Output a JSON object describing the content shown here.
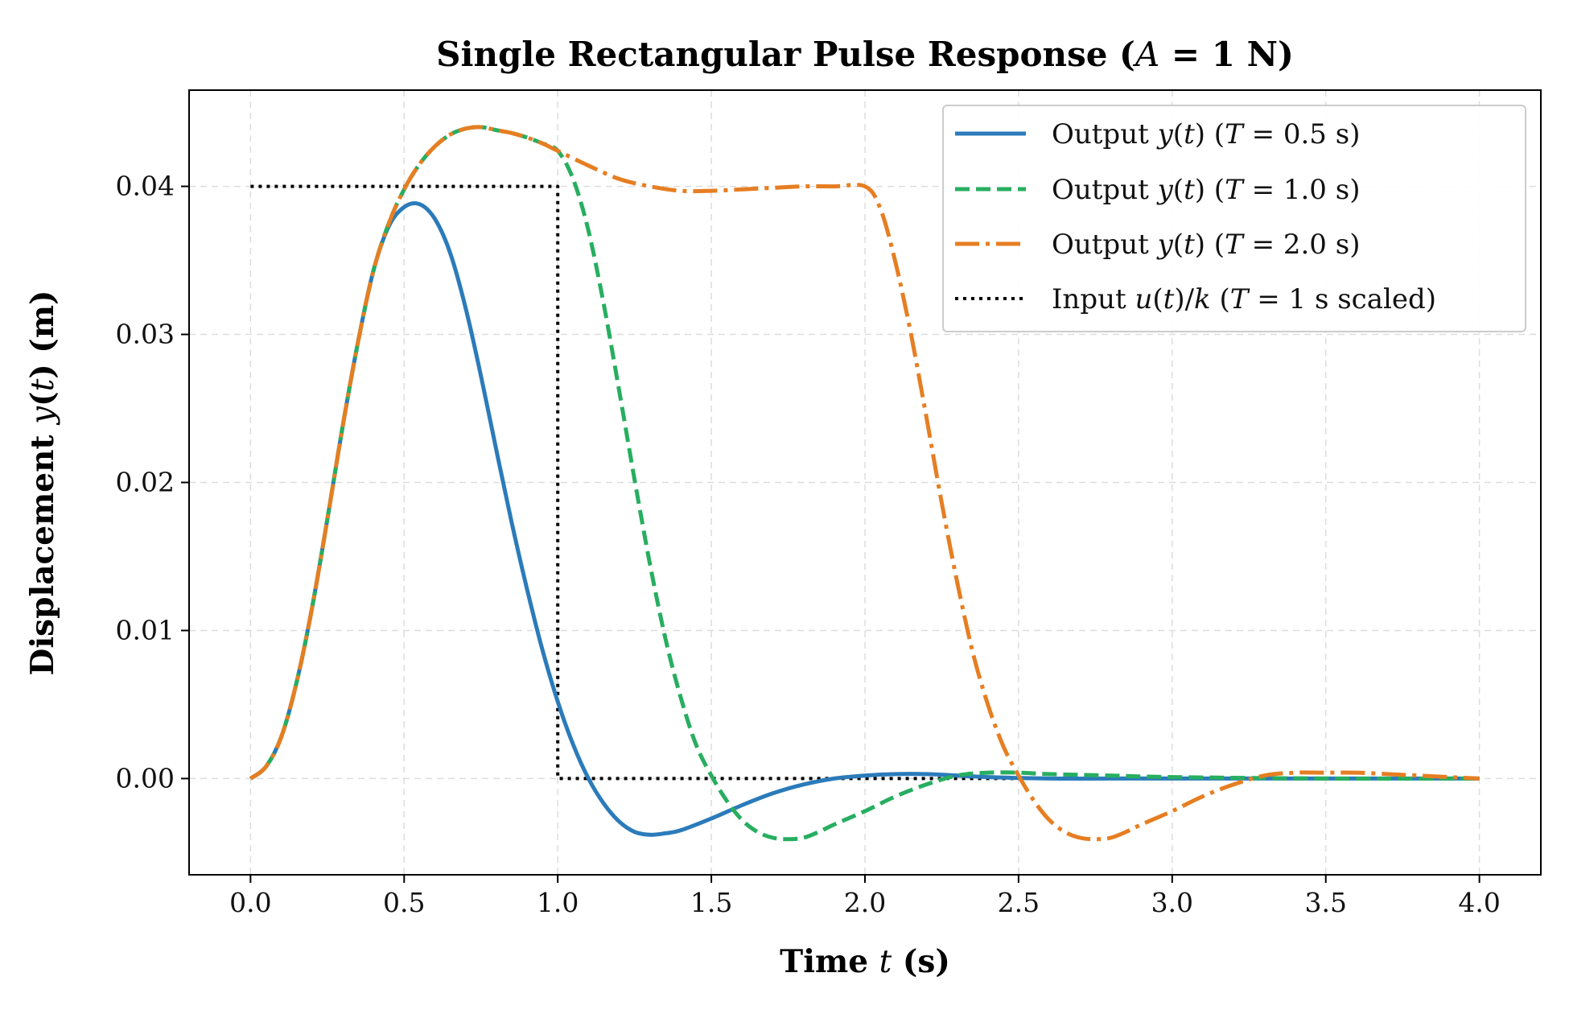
{
  "chart_data": {
    "type": "line",
    "title": "Single Rectangular Pulse Response (A = 1 N)",
    "xlabel": "Time t (s)",
    "ylabel": "Displacement y(t) (m)",
    "xlim": [
      -0.2,
      4.2
    ],
    "ylim": [
      -0.0065,
      0.0465
    ],
    "xticks": [
      "0.0",
      "0.5",
      "1.0",
      "1.5",
      "2.0",
      "2.5",
      "3.0",
      "3.5",
      "4.0"
    ],
    "yticks": [
      "0.00",
      "0.01",
      "0.02",
      "0.03",
      "0.04"
    ],
    "grid": true,
    "legend_position": "top-right",
    "series": [
      {
        "name": "Output y(t) (T = 0.5 s)",
        "color": "#2b7bba",
        "style": "solid",
        "x": [
          0.0,
          0.05,
          0.1,
          0.15,
          0.2,
          0.25,
          0.3,
          0.35,
          0.4,
          0.45,
          0.5,
          0.55,
          0.6,
          0.65,
          0.7,
          0.75,
          0.8,
          0.85,
          0.9,
          0.95,
          1.0,
          1.05,
          1.1,
          1.15,
          1.2,
          1.25,
          1.3,
          1.35,
          1.4,
          1.5,
          1.6,
          1.7,
          1.8,
          1.9,
          2.0,
          2.1,
          2.2,
          2.3,
          2.4,
          2.6,
          2.8,
          3.0,
          3.5,
          4.0
        ],
        "y": [
          0.0,
          0.0008,
          0.0028,
          0.0065,
          0.0115,
          0.0175,
          0.0238,
          0.0295,
          0.0343,
          0.0373,
          0.0386,
          0.0388,
          0.0378,
          0.0355,
          0.0318,
          0.0272,
          0.0222,
          0.0173,
          0.0128,
          0.0087,
          0.0052,
          0.0023,
          0.0,
          -0.0017,
          -0.0029,
          -0.0036,
          -0.0038,
          -0.0037,
          -0.0035,
          -0.0027,
          -0.0018,
          -0.001,
          -0.0004,
          0.0,
          0.0002,
          0.0003,
          0.0003,
          0.0002,
          0.0001,
          0.0,
          0.0,
          0.0,
          0.0,
          0.0
        ]
      },
      {
        "name": "Output y(t) (T = 1.0 s)",
        "color": "#27ae60",
        "style": "dashed",
        "x": [
          0.0,
          0.05,
          0.1,
          0.15,
          0.2,
          0.25,
          0.3,
          0.35,
          0.4,
          0.45,
          0.5,
          0.55,
          0.6,
          0.65,
          0.7,
          0.75,
          0.8,
          0.85,
          0.9,
          0.95,
          1.0,
          1.05,
          1.1,
          1.15,
          1.2,
          1.25,
          1.3,
          1.35,
          1.4,
          1.45,
          1.5,
          1.55,
          1.6,
          1.65,
          1.7,
          1.75,
          1.8,
          1.85,
          1.9,
          2.0,
          2.1,
          2.2,
          2.3,
          2.4,
          2.5,
          2.6,
          2.8,
          3.0,
          3.5,
          4.0
        ],
        "y": [
          0.0,
          0.0008,
          0.0028,
          0.0065,
          0.0115,
          0.0175,
          0.0238,
          0.0295,
          0.0343,
          0.0375,
          0.0398,
          0.0415,
          0.0427,
          0.0435,
          0.0439,
          0.044,
          0.0438,
          0.0436,
          0.0433,
          0.0429,
          0.0424,
          0.0405,
          0.037,
          0.032,
          0.0262,
          0.0202,
          0.0145,
          0.0095,
          0.0055,
          0.0023,
          0.0002,
          -0.0015,
          -0.0028,
          -0.0036,
          -0.004,
          -0.0041,
          -0.004,
          -0.0036,
          -0.0031,
          -0.0022,
          -0.0012,
          -0.0004,
          0.0002,
          0.0004,
          0.0004,
          0.0003,
          0.0002,
          0.0001,
          0.0,
          0.0
        ]
      },
      {
        "name": "Output y(t) (T = 2.0 s)",
        "color": "#e67e22",
        "style": "dashdot",
        "x": [
          0.0,
          0.05,
          0.1,
          0.15,
          0.2,
          0.25,
          0.3,
          0.35,
          0.4,
          0.45,
          0.5,
          0.55,
          0.6,
          0.65,
          0.7,
          0.75,
          0.8,
          0.85,
          0.9,
          0.95,
          1.0,
          1.1,
          1.2,
          1.3,
          1.4,
          1.5,
          1.6,
          1.7,
          1.8,
          1.9,
          2.0,
          2.05,
          2.1,
          2.15,
          2.2,
          2.25,
          2.3,
          2.35,
          2.4,
          2.45,
          2.5,
          2.55,
          2.6,
          2.65,
          2.7,
          2.75,
          2.8,
          2.85,
          2.9,
          3.0,
          3.1,
          3.2,
          3.3,
          3.4,
          3.5,
          3.6,
          3.7,
          3.8,
          3.9,
          4.0
        ],
        "y": [
          0.0,
          0.0008,
          0.0028,
          0.0065,
          0.0115,
          0.0175,
          0.0238,
          0.0295,
          0.0343,
          0.0375,
          0.0398,
          0.0415,
          0.0427,
          0.0435,
          0.0439,
          0.044,
          0.0438,
          0.0436,
          0.0433,
          0.0429,
          0.0424,
          0.0414,
          0.0405,
          0.04,
          0.0397,
          0.0397,
          0.0398,
          0.0399,
          0.04,
          0.04,
          0.04,
          0.0385,
          0.0348,
          0.03,
          0.0244,
          0.0186,
          0.0133,
          0.0086,
          0.005,
          0.0022,
          0.0002,
          -0.0015,
          -0.0028,
          -0.0036,
          -0.004,
          -0.0041,
          -0.004,
          -0.0036,
          -0.0031,
          -0.0022,
          -0.0012,
          -0.0004,
          0.0002,
          0.0004,
          0.0004,
          0.0004,
          0.0003,
          0.0002,
          0.0001,
          0.0
        ]
      },
      {
        "name": "Input u(t)/k (T = 1 s scaled)",
        "color": "#000000",
        "style": "dotted",
        "x": [
          0.0,
          1.0,
          1.0,
          4.0
        ],
        "y": [
          0.04,
          0.04,
          0.0,
          0.0
        ]
      }
    ]
  }
}
